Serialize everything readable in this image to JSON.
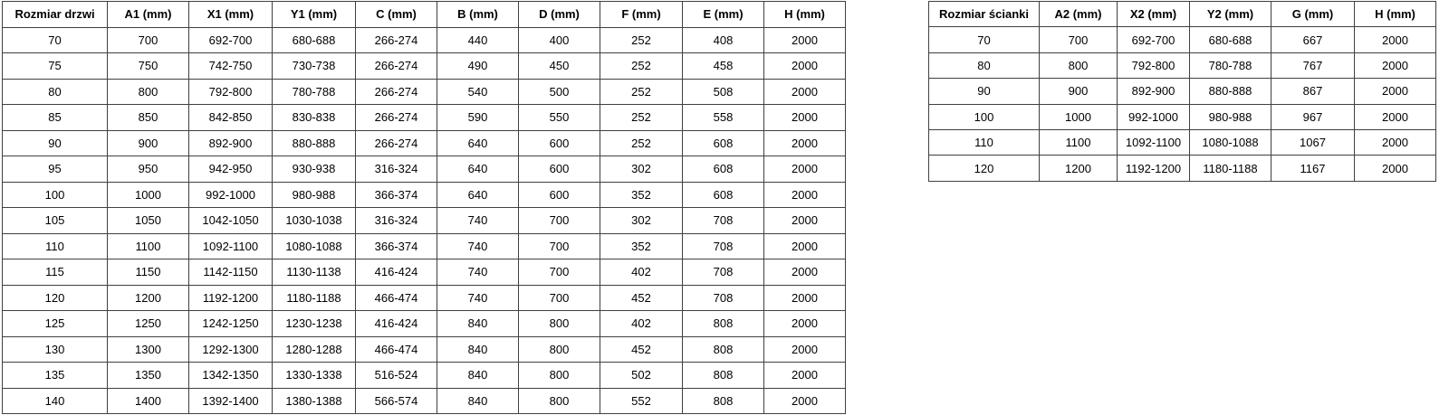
{
  "colors": {
    "background": "#ffffff",
    "border": "#404040",
    "text": "#000000"
  },
  "doors_table": {
    "headers": [
      "Rozmiar drzwi",
      "A1 (mm)",
      "X1 (mm)",
      "Y1 (mm)",
      "C (mm)",
      "B (mm)",
      "D (mm)",
      "F (mm)",
      "E (mm)",
      "H (mm)"
    ],
    "rows": [
      [
        "70",
        "700",
        "692-700",
        "680-688",
        "266-274",
        "440",
        "400",
        "252",
        "408",
        "2000"
      ],
      [
        "75",
        "750",
        "742-750",
        "730-738",
        "266-274",
        "490",
        "450",
        "252",
        "458",
        "2000"
      ],
      [
        "80",
        "800",
        "792-800",
        "780-788",
        "266-274",
        "540",
        "500",
        "252",
        "508",
        "2000"
      ],
      [
        "85",
        "850",
        "842-850",
        "830-838",
        "266-274",
        "590",
        "550",
        "252",
        "558",
        "2000"
      ],
      [
        "90",
        "900",
        "892-900",
        "880-888",
        "266-274",
        "640",
        "600",
        "252",
        "608",
        "2000"
      ],
      [
        "95",
        "950",
        "942-950",
        "930-938",
        "316-324",
        "640",
        "600",
        "302",
        "608",
        "2000"
      ],
      [
        "100",
        "1000",
        "992-1000",
        "980-988",
        "366-374",
        "640",
        "600",
        "352",
        "608",
        "2000"
      ],
      [
        "105",
        "1050",
        "1042-1050",
        "1030-1038",
        "316-324",
        "740",
        "700",
        "302",
        "708",
        "2000"
      ],
      [
        "110",
        "1100",
        "1092-1100",
        "1080-1088",
        "366-374",
        "740",
        "700",
        "352",
        "708",
        "2000"
      ],
      [
        "115",
        "1150",
        "1142-1150",
        "1130-1138",
        "416-424",
        "740",
        "700",
        "402",
        "708",
        "2000"
      ],
      [
        "120",
        "1200",
        "1192-1200",
        "1180-1188",
        "466-474",
        "740",
        "700",
        "452",
        "708",
        "2000"
      ],
      [
        "125",
        "1250",
        "1242-1250",
        "1230-1238",
        "416-424",
        "840",
        "800",
        "402",
        "808",
        "2000"
      ],
      [
        "130",
        "1300",
        "1292-1300",
        "1280-1288",
        "466-474",
        "840",
        "800",
        "452",
        "808",
        "2000"
      ],
      [
        "135",
        "1350",
        "1342-1350",
        "1330-1338",
        "516-524",
        "840",
        "800",
        "502",
        "808",
        "2000"
      ],
      [
        "140",
        "1400",
        "1392-1400",
        "1380-1388",
        "566-574",
        "840",
        "800",
        "552",
        "808",
        "2000"
      ]
    ]
  },
  "wall_table": {
    "headers": [
      "Rozmiar ścianki",
      "A2 (mm)",
      "X2 (mm)",
      "Y2 (mm)",
      "G (mm)",
      "H (mm)"
    ],
    "rows": [
      [
        "70",
        "700",
        "692-700",
        "680-688",
        "667",
        "2000"
      ],
      [
        "80",
        "800",
        "792-800",
        "780-788",
        "767",
        "2000"
      ],
      [
        "90",
        "900",
        "892-900",
        "880-888",
        "867",
        "2000"
      ],
      [
        "100",
        "1000",
        "992-1000",
        "980-988",
        "967",
        "2000"
      ],
      [
        "110",
        "1100",
        "1092-1100",
        "1080-1088",
        "1067",
        "2000"
      ],
      [
        "120",
        "1200",
        "1192-1200",
        "1180-1188",
        "1167",
        "2000"
      ]
    ]
  }
}
